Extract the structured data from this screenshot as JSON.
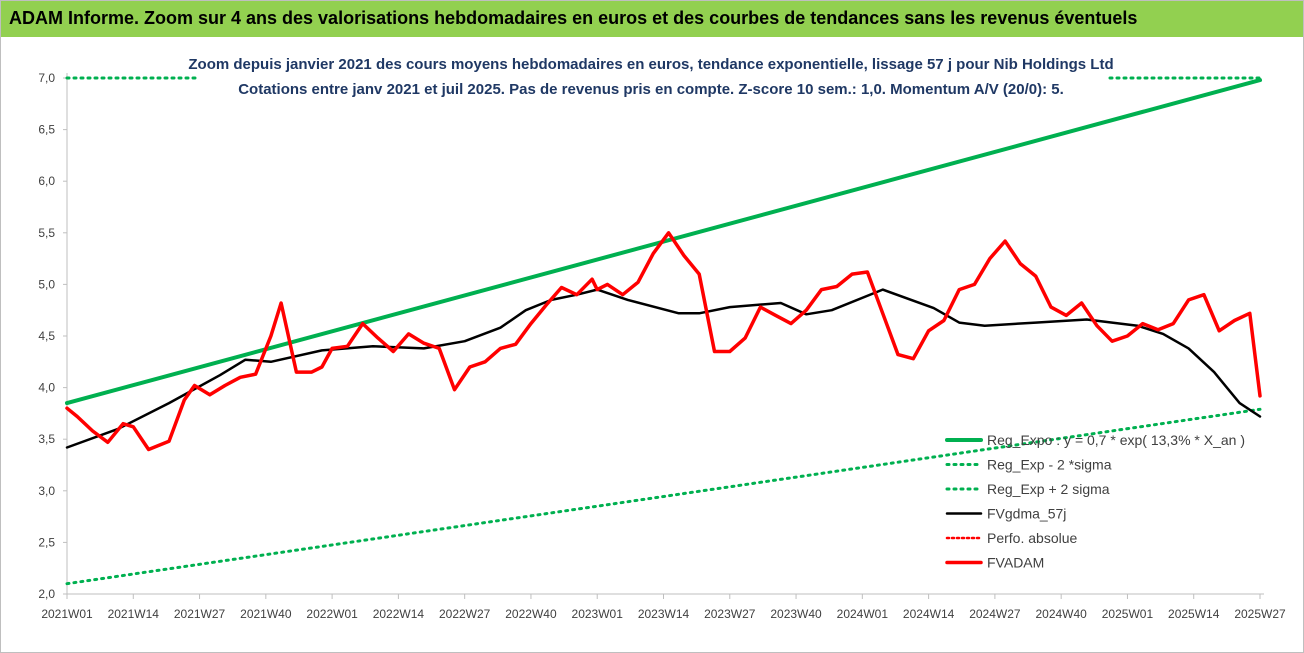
{
  "header": {
    "title": "ADAM Informe. Zoom sur 4 ans des valorisations hebdomadaires en euros et des courbes de tendances sans les revenus éventuels"
  },
  "chart_data": {
    "type": "line",
    "title": "Zoom depuis janvier 2021 des cours moyens hebdomadaires en euros, tendance exponentielle, lissage 57 j pour Nib Holdings Ltd",
    "subtitle": "Cotations entre janv 2021 et juil 2025. Pas de revenus pris en compte. Z-score 10 sem.: 1,0. Momentum A/V (20/0): 5.",
    "ylim": [
      2.0,
      7.0
    ],
    "yticks": [
      "2,0",
      "2,5",
      "3,0",
      "3,5",
      "4,0",
      "4,5",
      "5,0",
      "5,5",
      "6,0",
      "6,5",
      "7,0"
    ],
    "xticks": [
      "2021W01",
      "2021W14",
      "2021W27",
      "2021W40",
      "2022W01",
      "2022W14",
      "2022W27",
      "2022W40",
      "2023W01",
      "2023W14",
      "2023W27",
      "2023W40",
      "2024W01",
      "2024W14",
      "2024W27",
      "2024W40",
      "2025W01",
      "2025W14",
      "2025W27"
    ],
    "grid": false,
    "legend_position": "bottom-right",
    "colors": {
      "green": "#00b050",
      "black": "#000000",
      "red": "#ff0000",
      "dotted_red": "#ff0000"
    },
    "series": [
      {
        "name": "Reg_Expo : y = 0,7 * exp( 13,3% *  X_an )",
        "style": "solid-green",
        "x": [
          0,
          234
        ],
        "values": [
          3.85,
          6.98
        ]
      },
      {
        "name": "Reg_Exp - 2 *sigma",
        "style": "dotted-green",
        "x": [
          0,
          234
        ],
        "values": [
          2.1,
          3.79
        ]
      },
      {
        "name": "Reg_Exp + 2 sigma",
        "style": "dotted-green",
        "x": [
          0,
          234
        ],
        "values": [
          7.0,
          7.0
        ]
      },
      {
        "name": "FVgdma_57j",
        "style": "solid-black",
        "x": [
          0,
          10,
          20,
          30,
          35,
          40,
          50,
          60,
          70,
          78,
          85,
          90,
          95,
          100,
          104,
          110,
          120,
          124,
          130,
          140,
          145,
          150,
          160,
          170,
          175,
          180,
          190,
          200,
          210,
          215,
          220,
          225,
          230,
          234
        ],
        "values": [
          3.42,
          3.6,
          3.85,
          4.12,
          4.27,
          4.25,
          4.36,
          4.4,
          4.38,
          4.45,
          4.58,
          4.75,
          4.85,
          4.9,
          4.95,
          4.85,
          4.72,
          4.72,
          4.78,
          4.82,
          4.71,
          4.75,
          4.95,
          4.77,
          4.63,
          4.6,
          4.63,
          4.66,
          4.6,
          4.52,
          4.38,
          4.15,
          3.85,
          3.72
        ]
      },
      {
        "name": "Perfo. absolue",
        "style": "dotted-red",
        "x": [],
        "values": []
      },
      {
        "name": "FVADAM",
        "style": "solid-red",
        "x": [
          0,
          2,
          5,
          8,
          11,
          13,
          16,
          20,
          23,
          25,
          28,
          31,
          34,
          37,
          40,
          42,
          45,
          48,
          50,
          52,
          55,
          58,
          61,
          64,
          67,
          70,
          73,
          76,
          79,
          82,
          85,
          88,
          91,
          94,
          97,
          100,
          103,
          104,
          106,
          109,
          112,
          115,
          118,
          121,
          124,
          127,
          130,
          133,
          136,
          139,
          142,
          145,
          148,
          151,
          154,
          157,
          160,
          163,
          166,
          169,
          172,
          175,
          178,
          181,
          184,
          187,
          190,
          193,
          196,
          199,
          202,
          205,
          208,
          211,
          214,
          217,
          220,
          223,
          226,
          229,
          232,
          234
        ],
        "values": [
          3.8,
          3.72,
          3.58,
          3.47,
          3.65,
          3.62,
          3.4,
          3.48,
          3.88,
          4.02,
          3.93,
          4.02,
          4.1,
          4.13,
          4.5,
          4.82,
          4.15,
          4.15,
          4.2,
          4.38,
          4.4,
          4.62,
          4.48,
          4.35,
          4.52,
          4.43,
          4.38,
          3.98,
          4.2,
          4.25,
          4.38,
          4.42,
          4.62,
          4.8,
          4.97,
          4.9,
          5.05,
          4.95,
          5.0,
          4.9,
          5.02,
          5.3,
          5.5,
          5.28,
          5.1,
          4.35,
          4.35,
          4.48,
          4.78,
          4.7,
          4.62,
          4.75,
          4.95,
          4.98,
          5.1,
          5.12,
          4.72,
          4.32,
          4.28,
          4.55,
          4.65,
          4.95,
          5.0,
          5.25,
          5.42,
          5.2,
          5.08,
          4.78,
          4.7,
          4.82,
          4.6,
          4.45,
          4.5,
          4.62,
          4.56,
          4.62,
          4.85,
          4.9,
          4.55,
          4.65,
          4.72,
          3.92
        ]
      }
    ]
  }
}
